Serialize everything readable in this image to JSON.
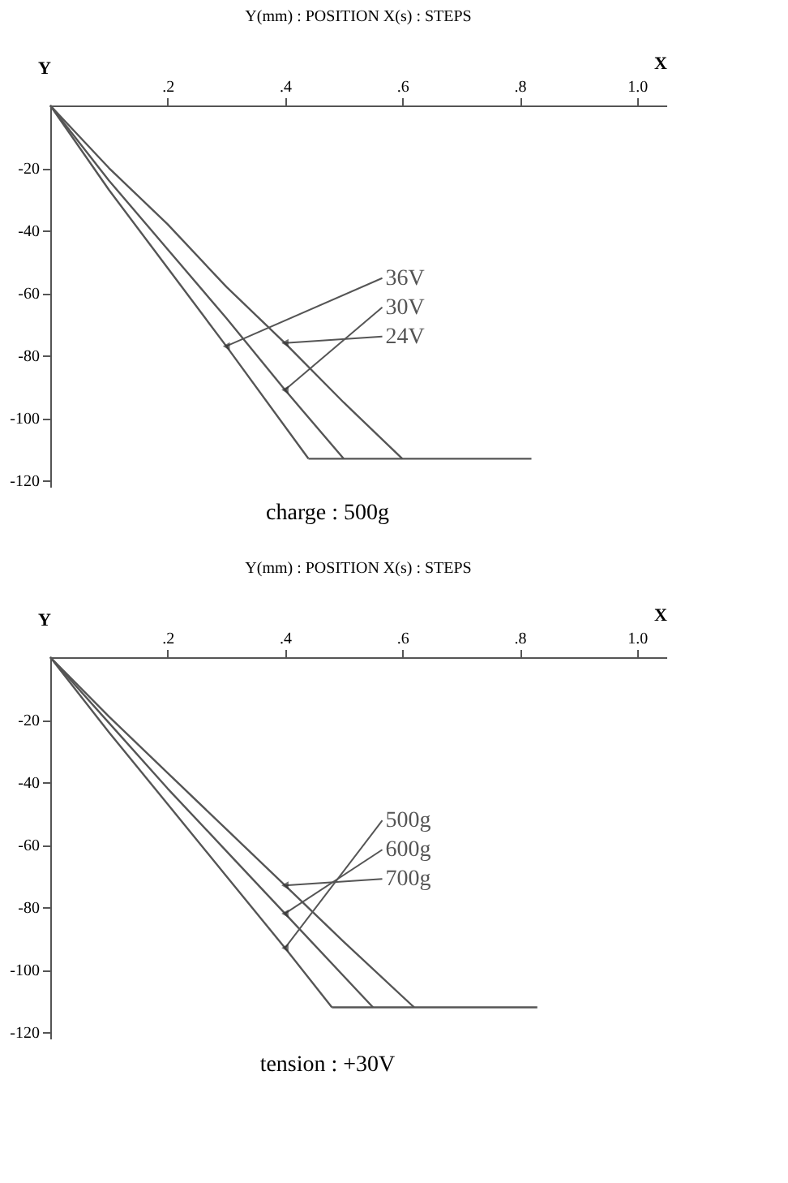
{
  "chart_data": [
    {
      "type": "line",
      "title": "Y(mm) : POSITION    X(s) : STEPS",
      "xlabel": "X",
      "ylabel": "Y",
      "annotations": [
        "charge : 500g"
      ],
      "xlim": [
        0,
        1.05
      ],
      "ylim": [
        -122,
        0
      ],
      "grid": false,
      "line_style": "solid",
      "marker": "none",
      "xticks": [
        {
          "value": 0.2,
          "label": ".2"
        },
        {
          "value": 0.4,
          "label": ".4"
        },
        {
          "value": 0.6,
          "label": ".6"
        },
        {
          "value": 0.8,
          "label": ".8"
        },
        {
          "value": 1.0,
          "label": "1.0"
        }
      ],
      "yticks": [
        -20,
        -40,
        -60,
        -80,
        -100,
        -120
      ],
      "series": [
        {
          "name": "36V",
          "color": "#555555",
          "x": [
            0,
            0.1,
            0.2,
            0.3,
            0.44
          ],
          "values": [
            0,
            -27,
            -52,
            -77,
            -113
          ]
        },
        {
          "name": "30V",
          "color": "#555555",
          "x": [
            0,
            0.1,
            0.2,
            0.3,
            0.4,
            0.5
          ],
          "values": [
            0,
            -24,
            -46,
            -68,
            -91,
            -113
          ]
        },
        {
          "name": "24V",
          "color": "#555555",
          "x": [
            0,
            0.1,
            0.2,
            0.3,
            0.4,
            0.5,
            0.6
          ],
          "values": [
            0,
            -20,
            -38,
            -58,
            -76,
            -95,
            -113
          ]
        },
        {
          "color": "#555555",
          "x": [
            0.44,
            0.82
          ],
          "values": [
            -113,
            -113
          ]
        }
      ]
    },
    {
      "type": "line",
      "title": "Y(mm) : POSITION    X(s) : STEPS",
      "xlabel": "X",
      "ylabel": "Y",
      "annotations": [
        "tension : +30V"
      ],
      "xlim": [
        0,
        1.05
      ],
      "ylim": [
        -122,
        0
      ],
      "grid": false,
      "line_style": "solid",
      "marker": "none",
      "xticks": [
        {
          "value": 0.2,
          "label": ".2"
        },
        {
          "value": 0.4,
          "label": ".4"
        },
        {
          "value": 0.6,
          "label": ".6"
        },
        {
          "value": 0.8,
          "label": ".8"
        },
        {
          "value": 1.0,
          "label": "1.0"
        }
      ],
      "yticks": [
        -20,
        -40,
        -60,
        -80,
        -100,
        -120
      ],
      "series": [
        {
          "name": "500g",
          "color": "#555555",
          "x": [
            0,
            0.1,
            0.2,
            0.3,
            0.4,
            0.48
          ],
          "values": [
            0,
            -24,
            -47,
            -70,
            -93,
            -112
          ]
        },
        {
          "name": "600g",
          "color": "#555555",
          "x": [
            0,
            0.1,
            0.2,
            0.3,
            0.4,
            0.55
          ],
          "values": [
            0,
            -21,
            -42,
            -62,
            -82,
            -112
          ]
        },
        {
          "name": "700g",
          "color": "#555555",
          "x": [
            0,
            0.1,
            0.2,
            0.3,
            0.4,
            0.5,
            0.62
          ],
          "values": [
            0,
            -19,
            -37,
            -55,
            -73,
            -91,
            -112
          ]
        },
        {
          "color": "#555555",
          "x": [
            0.48,
            0.83
          ],
          "values": [
            -112,
            -112
          ]
        }
      ]
    }
  ]
}
